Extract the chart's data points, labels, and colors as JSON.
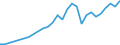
{
  "values": [
    2,
    2,
    3,
    4,
    5,
    6,
    7,
    9,
    11,
    13,
    14,
    17,
    22,
    19,
    26,
    30,
    28,
    16,
    22,
    24,
    21,
    23,
    27,
    30,
    28,
    32
  ],
  "line_color": "#3a9fd8",
  "background_color": "#ffffff",
  "linewidth": 1.2
}
